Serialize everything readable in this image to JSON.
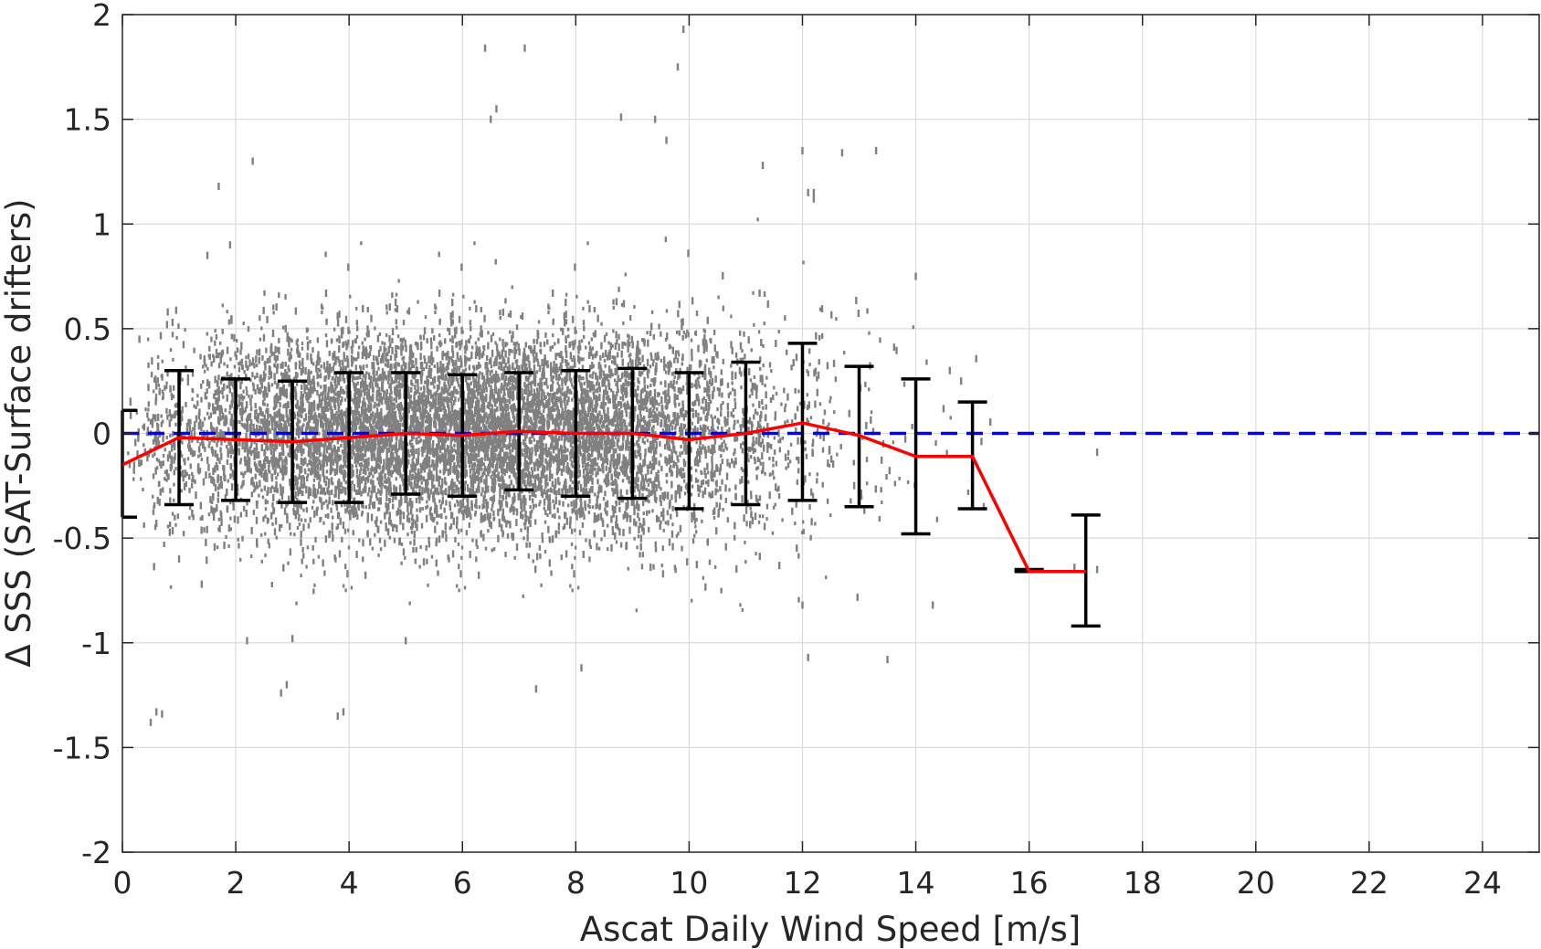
{
  "chart_data": {
    "type": "scatter",
    "xlabel": "Ascat Daily Wind Speed [m/s]",
    "ylabel": "Δ SSS (SAT-Surface drifters)",
    "xlim": [
      0,
      25
    ],
    "ylim": [
      -2,
      2
    ],
    "xticks": [
      0,
      2,
      4,
      6,
      8,
      10,
      12,
      14,
      16,
      18,
      20,
      22,
      24
    ],
    "yticks": [
      -2,
      -1.5,
      -1,
      -0.5,
      0,
      0.5,
      1,
      1.5,
      2
    ],
    "xtick_labels": [
      "0",
      "2",
      "4",
      "6",
      "8",
      "10",
      "12",
      "14",
      "16",
      "18",
      "20",
      "22",
      "24"
    ],
    "ytick_labels": [
      "-2",
      "-1.5",
      "-1",
      "-0.5",
      "0",
      "0.5",
      "1",
      "1.5",
      "2"
    ],
    "grid": true,
    "colors": {
      "points": "#808080",
      "mean_line": "#ff0000",
      "errorbars": "#000000",
      "zero_line": "#0000ff",
      "grid": "#dcdcdc",
      "axes": "#262626"
    },
    "reference_line": {
      "y": 0,
      "style": "dashed",
      "color": "#0000ff"
    },
    "mean_series": {
      "x": [
        0,
        1,
        2,
        3,
        4,
        5,
        6,
        7,
        8,
        9,
        10,
        11,
        12,
        13,
        14,
        15,
        16,
        17
      ],
      "y": [
        -0.15,
        -0.02,
        -0.03,
        -0.04,
        -0.02,
        0.0,
        -0.01,
        0.01,
        0.0,
        0.0,
        -0.03,
        0.0,
        0.05,
        -0.01,
        -0.11,
        -0.11,
        -0.66,
        -0.66
      ]
    },
    "errorbars": [
      {
        "x": 0,
        "low": -0.4,
        "high": 0.11
      },
      {
        "x": 1,
        "low": -0.34,
        "high": 0.3
      },
      {
        "x": 2,
        "low": -0.32,
        "high": 0.26
      },
      {
        "x": 3,
        "low": -0.33,
        "high": 0.25
      },
      {
        "x": 4,
        "low": -0.33,
        "high": 0.29
      },
      {
        "x": 5,
        "low": -0.29,
        "high": 0.29
      },
      {
        "x": 6,
        "low": -0.3,
        "high": 0.28
      },
      {
        "x": 7,
        "low": -0.27,
        "high": 0.29
      },
      {
        "x": 8,
        "low": -0.3,
        "high": 0.3
      },
      {
        "x": 9,
        "low": -0.31,
        "high": 0.31
      },
      {
        "x": 10,
        "low": -0.36,
        "high": 0.29
      },
      {
        "x": 11,
        "low": -0.34,
        "high": 0.34
      },
      {
        "x": 12,
        "low": -0.32,
        "high": 0.43
      },
      {
        "x": 13,
        "low": -0.35,
        "high": 0.32
      },
      {
        "x": 14,
        "low": -0.48,
        "high": 0.26
      },
      {
        "x": 15,
        "low": -0.36,
        "high": 0.15
      },
      {
        "x": 16,
        "low": -0.66,
        "high": -0.65
      },
      {
        "x": 17,
        "low": -0.92,
        "high": -0.39
      }
    ],
    "scatter_bins": [
      {
        "center": 0.5,
        "spread": 0.18,
        "count": 60
      },
      {
        "center": 1.0,
        "spread": 0.22,
        "count": 260
      },
      {
        "center": 2.0,
        "spread": 0.24,
        "count": 520
      },
      {
        "center": 3.0,
        "spread": 0.24,
        "count": 800
      },
      {
        "center": 4.0,
        "spread": 0.24,
        "count": 1000
      },
      {
        "center": 5.0,
        "spread": 0.24,
        "count": 1100
      },
      {
        "center": 6.0,
        "spread": 0.24,
        "count": 1150
      },
      {
        "center": 7.0,
        "spread": 0.23,
        "count": 1100
      },
      {
        "center": 8.0,
        "spread": 0.24,
        "count": 1000
      },
      {
        "center": 9.0,
        "spread": 0.25,
        "count": 800
      },
      {
        "center": 10.0,
        "spread": 0.26,
        "count": 520
      },
      {
        "center": 11.0,
        "spread": 0.27,
        "count": 280
      },
      {
        "center": 12.0,
        "spread": 0.3,
        "count": 130
      },
      {
        "center": 13.0,
        "spread": 0.28,
        "count": 45
      },
      {
        "center": 14.0,
        "spread": 0.3,
        "count": 14
      },
      {
        "center": 15.0,
        "spread": 0.2,
        "count": 6
      }
    ],
    "outliers": [
      {
        "x": 6.4,
        "y": 1.84
      },
      {
        "x": 7.1,
        "y": 1.84
      },
      {
        "x": 9.9,
        "y": 1.93
      },
      {
        "x": 9.8,
        "y": 1.75
      },
      {
        "x": 6.5,
        "y": 1.5
      },
      {
        "x": 6.6,
        "y": 1.55
      },
      {
        "x": 8.8,
        "y": 1.51
      },
      {
        "x": 9.4,
        "y": 1.5
      },
      {
        "x": 9.6,
        "y": 1.4
      },
      {
        "x": 12.0,
        "y": 1.35
      },
      {
        "x": 13.3,
        "y": 1.35
      },
      {
        "x": 12.7,
        "y": 1.34
      },
      {
        "x": 2.3,
        "y": 1.3
      },
      {
        "x": 11.3,
        "y": 1.28
      },
      {
        "x": 12.2,
        "y": 1.15
      },
      {
        "x": 12.1,
        "y": 1.15
      },
      {
        "x": 12.2,
        "y": 1.12
      },
      {
        "x": 14.0,
        "y": 0.75
      },
      {
        "x": 14.6,
        "y": 0.3
      },
      {
        "x": 14.8,
        "y": 0.25
      },
      {
        "x": 17.2,
        "y": -0.09
      },
      {
        "x": 17.2,
        "y": -0.65
      },
      {
        "x": 16.8,
        "y": -0.64
      },
      {
        "x": 15.2,
        "y": -0.35
      },
      {
        "x": 14.3,
        "y": -0.82
      },
      {
        "x": 13.5,
        "y": -1.08
      },
      {
        "x": 12.1,
        "y": -1.07
      },
      {
        "x": 12.0,
        "y": -0.82
      },
      {
        "x": 0.5,
        "y": -1.38
      },
      {
        "x": 0.6,
        "y": -1.33
      },
      {
        "x": 0.7,
        "y": -1.34
      },
      {
        "x": 2.9,
        "y": -1.2
      },
      {
        "x": 2.8,
        "y": -1.24
      },
      {
        "x": 3.8,
        "y": -1.35
      },
      {
        "x": 3.9,
        "y": -1.33
      },
      {
        "x": 7.3,
        "y": -1.22
      },
      {
        "x": 8.1,
        "y": -1.12
      },
      {
        "x": 5.0,
        "y": -0.99
      },
      {
        "x": 3.0,
        "y": -0.98
      },
      {
        "x": 2.2,
        "y": -0.99
      },
      {
        "x": 0.6,
        "y": -0.43
      },
      {
        "x": 0.3,
        "y": 0.45
      },
      {
        "x": 0.8,
        "y": 0.58
      },
      {
        "x": 1.5,
        "y": 0.85
      },
      {
        "x": 1.7,
        "y": 1.18
      },
      {
        "x": 1.9,
        "y": 0.9
      },
      {
        "x": 1.0,
        "y": -0.6
      },
      {
        "x": 1.4,
        "y": -0.72
      }
    ]
  }
}
